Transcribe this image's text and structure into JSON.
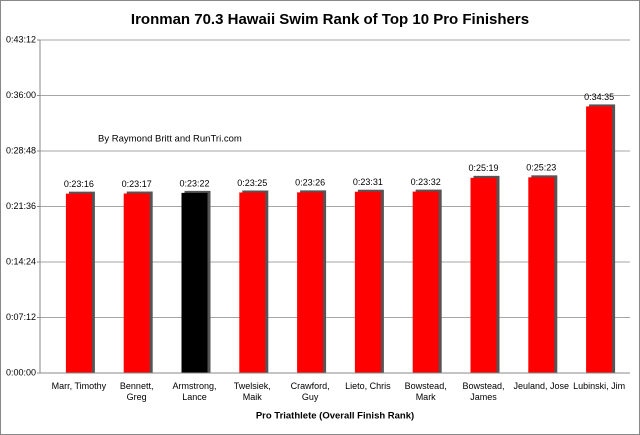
{
  "chart_data": {
    "type": "bar",
    "title": "Ironman 70.3 Hawaii Swim Rank of Top 10 Pro Finishers",
    "annotation": "By Raymond Britt and RunTri.com",
    "x_label": "Pro Triathlete (Overall Finish Rank)",
    "categories": [
      "Marr, Timothy",
      "Bennett, Greg",
      "Armstrong, Lance",
      "Twelsiek, Maik",
      "Crawford, Guy",
      "Lieto, Chris",
      "Bowstead, Mark",
      "Bowstead, James",
      "Jeuland, Jose",
      "Lubinski, Jim"
    ],
    "values": [
      1396,
      1397,
      1402,
      1405,
      1406,
      1411,
      1412,
      1519,
      1523,
      2075
    ],
    "value_labels": [
      "0:23:16",
      "0:23:17",
      "0:23:22",
      "0:23:25",
      "0:23:26",
      "0:23:31",
      "0:23:32",
      "0:25:19",
      "0:25:23",
      "0:34:35"
    ],
    "colors": [
      "#ff0000",
      "#ff0000",
      "#000000",
      "#ff0000",
      "#ff0000",
      "#ff0000",
      "#ff0000",
      "#ff0000",
      "#ff0000",
      "#ff0000"
    ],
    "ylim": [
      0,
      2592
    ],
    "yticks": [
      {
        "value": 0,
        "label": "0:00:00"
      },
      {
        "value": 432,
        "label": "0:07:12"
      },
      {
        "value": 864,
        "label": "0:14:24"
      },
      {
        "value": 1296,
        "label": "0:21:36"
      },
      {
        "value": 1728,
        "label": "0:28:48"
      },
      {
        "value": 2160,
        "label": "0:36:00"
      },
      {
        "value": 2592,
        "label": "0:43:12"
      }
    ],
    "grid": true
  }
}
